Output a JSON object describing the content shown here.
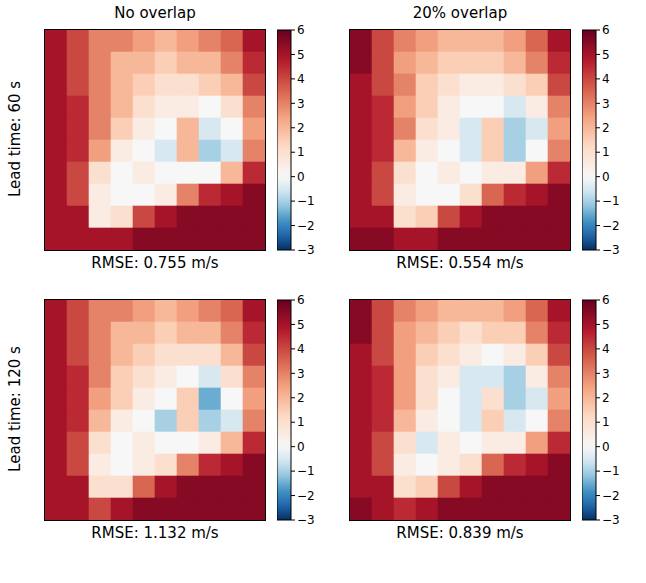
{
  "chart_data": [
    {
      "type": "heatmap",
      "title": "No overlap",
      "ylabel": "Lead time: 60 s",
      "xlabel": "RMSE: 0.755 m/s",
      "tick_labels": false,
      "cells": [
        [
          5,
          4,
          3,
          3,
          2.5,
          2,
          2.5,
          3,
          3.5,
          5
        ],
        [
          5,
          4,
          3,
          2,
          2,
          1.5,
          2,
          2,
          3,
          4.5
        ],
        [
          5,
          4,
          3,
          2,
          1.5,
          1,
          1,
          1.5,
          2,
          4
        ],
        [
          5,
          4.5,
          3,
          2,
          1,
          0.5,
          0.5,
          0,
          1,
          3
        ],
        [
          5,
          4.5,
          3,
          1.5,
          0.5,
          0,
          2,
          -0.5,
          0,
          2.5
        ],
        [
          5,
          4.5,
          2.5,
          0.5,
          0,
          -0.5,
          2,
          -1,
          -0.5,
          3
        ],
        [
          5,
          4,
          1,
          0,
          0.5,
          0,
          0,
          0,
          2,
          4.5
        ],
        [
          5,
          4,
          0.5,
          0,
          0,
          0.5,
          3,
          4.5,
          5,
          5.5
        ],
        [
          5,
          5,
          0.5,
          1,
          4,
          5,
          5.5,
          5.5,
          5.5,
          5.5
        ],
        [
          5,
          5,
          5,
          5,
          5.5,
          5.5,
          5.5,
          5.5,
          5.5,
          5.5
        ]
      ],
      "colorbar": {
        "range": [
          -3,
          6
        ],
        "ticks": [
          {
            "value": -3,
            "label": "−3"
          },
          {
            "value": -2,
            "label": "−2"
          },
          {
            "value": -1,
            "label": "−1"
          },
          0,
          1,
          2,
          3,
          4,
          5,
          6
        ]
      }
    },
    {
      "type": "heatmap",
      "title": "20% overlap",
      "xlabel": "RMSE: 0.554 m/s",
      "tick_labels": false,
      "cells": [
        [
          5.5,
          4,
          3,
          2.5,
          2,
          2,
          2,
          2.5,
          3.5,
          5
        ],
        [
          5.5,
          4,
          2.5,
          2,
          1.5,
          1.5,
          1.5,
          2,
          3,
          4.5
        ],
        [
          5,
          4,
          3,
          1.5,
          1,
          0.5,
          0.5,
          1,
          1.5,
          4
        ],
        [
          5,
          4.5,
          2.5,
          1.5,
          0.5,
          0,
          0,
          -0.5,
          0.5,
          3
        ],
        [
          5,
          4.5,
          3,
          1,
          0.5,
          -0.5,
          1.5,
          -1,
          -0.5,
          2.5
        ],
        [
          5,
          4.5,
          2,
          0.5,
          0,
          -0.5,
          1.5,
          -1,
          0,
          3
        ],
        [
          5,
          4,
          1,
          0,
          0.5,
          0,
          0.5,
          0.5,
          2.5,
          4.5
        ],
        [
          5,
          4,
          0.5,
          0,
          0,
          1,
          3.5,
          4.5,
          5,
          5.5
        ],
        [
          5,
          5,
          1,
          1.5,
          4,
          5,
          5.5,
          5.5,
          5.5,
          5.5
        ],
        [
          5.5,
          5.5,
          5,
          5,
          5.5,
          5.5,
          5.5,
          5.5,
          5.5,
          5.5
        ]
      ],
      "colorbar": {
        "range": [
          -3,
          6
        ],
        "ticks": [
          {
            "value": -3,
            "label": "−3"
          },
          {
            "value": -2,
            "label": "−2"
          },
          {
            "value": -1,
            "label": "−1"
          },
          0,
          1,
          2,
          3,
          4,
          5,
          6
        ]
      }
    },
    {
      "type": "heatmap",
      "ylabel": "Lead time: 120 s",
      "xlabel": "RMSE: 1.132 m/s",
      "tick_labels": false,
      "cells": [
        [
          5,
          4,
          3,
          3,
          2.5,
          2,
          2.5,
          3,
          3.5,
          5
        ],
        [
          5,
          4,
          3,
          2,
          2,
          1.5,
          2,
          2,
          3,
          4.5
        ],
        [
          5,
          4,
          3,
          2,
          1.5,
          1,
          1,
          1,
          2,
          4
        ],
        [
          5,
          4.5,
          3,
          1.5,
          1,
          0.5,
          0,
          -0.5,
          1,
          3
        ],
        [
          5,
          4.5,
          2.5,
          1.5,
          0.5,
          0,
          1.5,
          -1.5,
          0,
          2.5
        ],
        [
          5,
          4.5,
          2,
          0.5,
          0,
          -1,
          1.5,
          -1,
          -0.5,
          3
        ],
        [
          5,
          4,
          1,
          0,
          0.5,
          0,
          0,
          0.5,
          2,
          4.5
        ],
        [
          5,
          4,
          0.5,
          0,
          0.5,
          1,
          3,
          4.5,
          5,
          5.5
        ],
        [
          5,
          5,
          1,
          1,
          3.5,
          5,
          5.5,
          5.5,
          5.5,
          5.5
        ],
        [
          5,
          5,
          4,
          5,
          5.5,
          5.5,
          5.5,
          5.5,
          5.5,
          5.5
        ]
      ],
      "colorbar": {
        "range": [
          -3,
          6
        ],
        "ticks": [
          {
            "value": -3,
            "label": "−3"
          },
          {
            "value": -2,
            "label": "−2"
          },
          {
            "value": -1,
            "label": "−1"
          },
          0,
          1,
          2,
          3,
          4,
          5,
          6
        ]
      }
    },
    {
      "type": "heatmap",
      "xlabel": "RMSE: 0.839 m/s",
      "tick_labels": false,
      "cells": [
        [
          5.5,
          4,
          3,
          2.5,
          2,
          2,
          2,
          2.5,
          3.5,
          5
        ],
        [
          5.5,
          4,
          2.5,
          2,
          1.5,
          1,
          1.5,
          1.5,
          3,
          4.5
        ],
        [
          5,
          4,
          2.5,
          1.5,
          1,
          0.5,
          0,
          0.5,
          1.5,
          4
        ],
        [
          5,
          4.5,
          2.5,
          1,
          0.5,
          -0.5,
          -0.5,
          -1,
          0.5,
          3
        ],
        [
          5,
          4.5,
          2.5,
          1,
          0,
          -0.5,
          1,
          -1,
          -0.5,
          2.5
        ],
        [
          5,
          4.5,
          2,
          0.5,
          0,
          -0.5,
          1.5,
          -0.5,
          0,
          3
        ],
        [
          5,
          4,
          1,
          -0.5,
          0.5,
          0,
          0.5,
          0.5,
          2.5,
          4.5
        ],
        [
          5,
          4,
          0.5,
          0,
          0.5,
          1,
          3.5,
          4.5,
          5,
          5.5
        ],
        [
          5,
          5,
          1,
          1.5,
          4,
          5,
          5.5,
          5.5,
          5.5,
          5.5
        ],
        [
          5.5,
          5,
          4.5,
          5,
          5.5,
          5.5,
          5.5,
          5.5,
          5.5,
          5.5
        ]
      ],
      "colorbar": {
        "range": [
          -3,
          6
        ],
        "ticks": [
          {
            "value": -3,
            "label": "−3"
          },
          {
            "value": -2,
            "label": "−2"
          },
          {
            "value": -1,
            "label": "−1"
          },
          0,
          1,
          2,
          3,
          4,
          5,
          6
        ]
      }
    }
  ]
}
